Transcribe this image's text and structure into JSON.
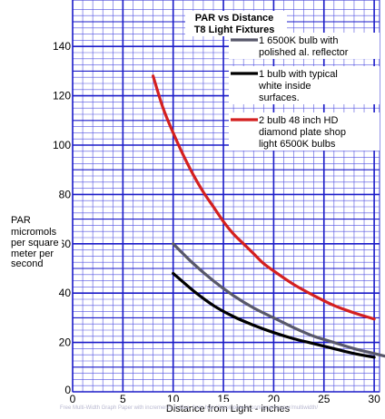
{
  "chart_data": {
    "type": "line",
    "title": "PAR vs Distance",
    "subtitle": "T8 Light Fixtures",
    "xlabel": "Distance from Light - inches",
    "ylabel_lines": [
      "PAR",
      "micromols",
      "per square",
      "meter per",
      "second"
    ],
    "xlim": [
      0,
      30
    ],
    "ylim": [
      0,
      155
    ],
    "x_ticks": [
      0,
      5,
      10,
      15,
      20,
      25,
      30
    ],
    "x_tick_labels": [
      "0",
      "5",
      "10",
      "15",
      "20",
      "25",
      "30"
    ],
    "y_ticks": [
      0,
      20,
      40,
      60,
      80,
      100,
      120,
      140
    ],
    "y_tick_labels": [
      "0",
      "20",
      "40",
      "60",
      "80",
      "100",
      "120",
      "140"
    ],
    "grid": true,
    "legend_position": "top-right",
    "series": [
      {
        "name_lines": [
          "1 6500K bulb with",
          "polished al. reflector"
        ],
        "color": "#58586a",
        "points": [
          [
            10,
            60
          ],
          [
            12,
            52
          ],
          [
            14,
            45
          ],
          [
            16,
            39
          ],
          [
            18,
            34
          ],
          [
            20,
            30
          ],
          [
            22,
            26
          ],
          [
            24,
            22.5
          ],
          [
            26,
            20
          ],
          [
            28,
            17.5
          ],
          [
            30,
            15.5
          ],
          [
            31,
            14.5
          ]
        ]
      },
      {
        "name_lines": [
          "1 bulb with typical",
          "white inside",
          "surfaces."
        ],
        "color": "#000000",
        "points": [
          [
            10,
            48
          ],
          [
            12,
            41
          ],
          [
            14,
            35
          ],
          [
            16,
            30.5
          ],
          [
            18,
            27
          ],
          [
            20,
            24
          ],
          [
            22,
            21.5
          ],
          [
            24,
            19.5
          ],
          [
            26,
            17.5
          ],
          [
            28,
            15.5
          ],
          [
            30,
            14
          ]
        ]
      },
      {
        "name_lines": [
          "2 bulb 48 inch HD",
          "diamond plate shop",
          "light 6500K bulbs"
        ],
        "color": "#d42020",
        "points": [
          [
            8,
            128
          ],
          [
            9,
            115
          ],
          [
            10,
            105
          ],
          [
            11,
            96
          ],
          [
            12,
            88
          ],
          [
            13,
            81
          ],
          [
            14,
            75
          ],
          [
            15,
            69
          ],
          [
            16,
            64
          ],
          [
            17,
            60
          ],
          [
            18,
            56
          ],
          [
            19,
            52
          ],
          [
            20,
            49
          ],
          [
            22,
            43.5
          ],
          [
            24,
            39
          ],
          [
            26,
            35
          ],
          [
            28,
            32
          ],
          [
            30,
            29.5
          ]
        ]
      }
    ]
  },
  "footer": "Free Multi-Width Graph Paper with increments in blue, from http://incompetech.com/graphpaper/multiwidth/"
}
